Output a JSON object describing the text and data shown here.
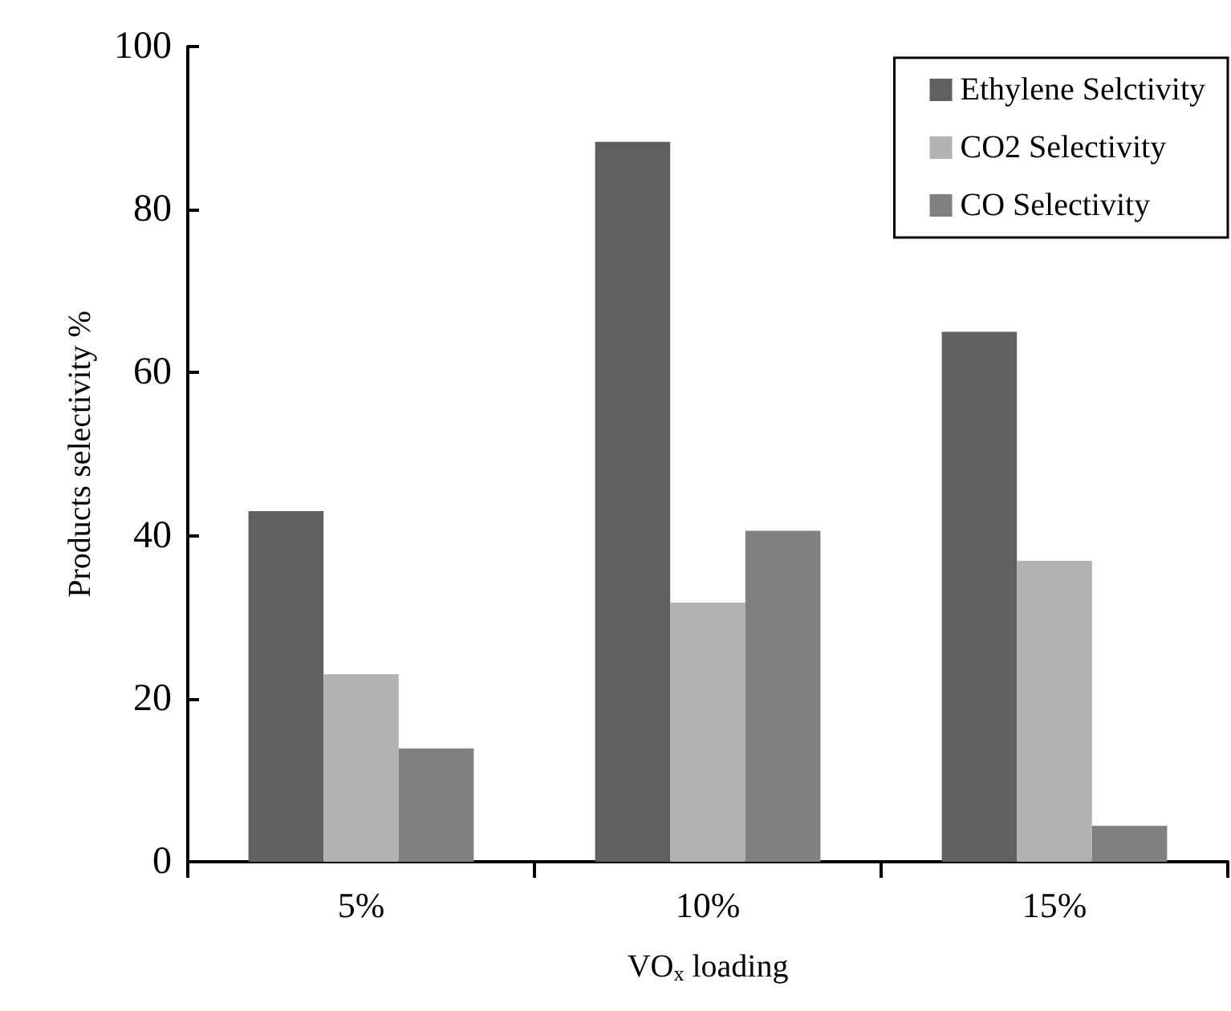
{
  "chart_data": {
    "type": "bar",
    "xlabel": "VO$_{x}$ loading",
    "ylabel": "Products selectivity %",
    "categories": [
      "5%",
      "10%",
      "15%"
    ],
    "series": [
      {
        "name": "Ethylene Selctivity",
        "color": "#606060",
        "values": [
          43,
          88.3,
          65
        ]
      },
      {
        "name": "CO2 Selectivity",
        "color": "#b2b2b2",
        "values": [
          23,
          31.8,
          36.9
        ]
      },
      {
        "name": "CO Selectivity",
        "color": "#808080",
        "values": [
          13.9,
          40.6,
          4.4
        ]
      }
    ],
    "ylim": [
      0,
      100
    ],
    "yticks": [
      0,
      20,
      40,
      60,
      80,
      100
    ],
    "grid": false,
    "legend": "top right"
  }
}
